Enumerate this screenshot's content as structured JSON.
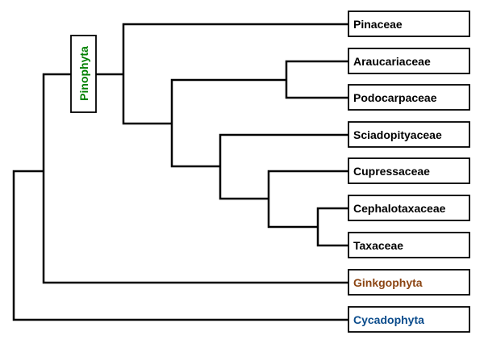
{
  "clade_label": {
    "text": "Pinophyta",
    "color": "#008000"
  },
  "taxa": [
    {
      "name": "Pinaceae",
      "color": "#000000"
    },
    {
      "name": "Araucariaceae",
      "color": "#000000"
    },
    {
      "name": "Podocarpaceae",
      "color": "#000000"
    },
    {
      "name": "Sciadopityaceae",
      "color": "#000000"
    },
    {
      "name": "Cupressaceae",
      "color": "#000000"
    },
    {
      "name": "Cephalotaxaceae",
      "color": "#000000"
    },
    {
      "name": "Taxaceae",
      "color": "#000000"
    },
    {
      "name": "Ginkgophyta",
      "color": "#8B4513"
    },
    {
      "name": "Cycadophyta",
      "color": "#0B4C8C"
    }
  ]
}
